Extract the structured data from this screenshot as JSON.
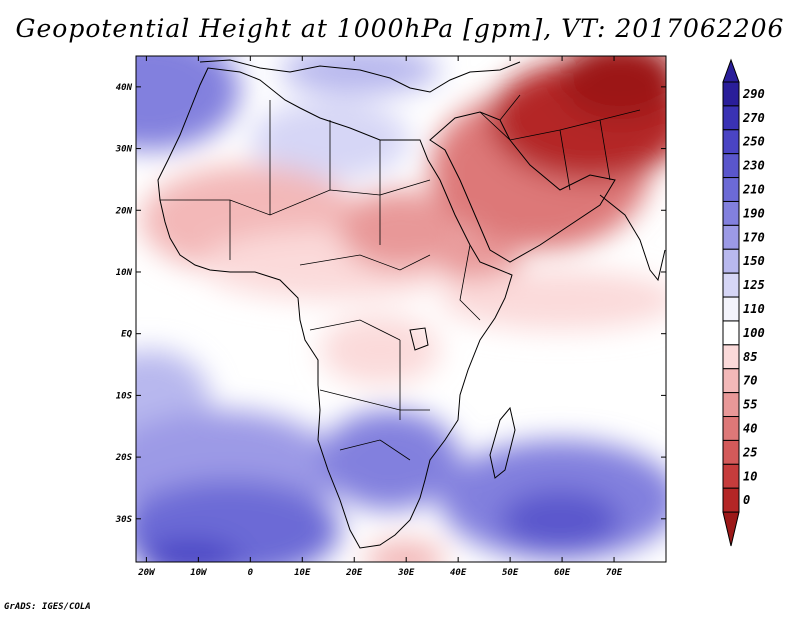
{
  "title": "Geopotential Height at 1000hPa [gpm], VT: 2017062206",
  "credit": "GrADS: IGES/COLA",
  "axes": {
    "lon_labels": [
      "20W",
      "10W",
      "0",
      "10E",
      "20E",
      "30E",
      "40E",
      "50E",
      "60E",
      "70E"
    ],
    "lat_labels": [
      "40N",
      "30N",
      "20N",
      "10N",
      "EQ",
      "10S",
      "20S",
      "30S"
    ]
  },
  "colorbar": {
    "levels": [
      "290",
      "270",
      "250",
      "230",
      "210",
      "190",
      "170",
      "150",
      "125",
      "110",
      "100",
      "85",
      "70",
      "55",
      "40",
      "25",
      "10",
      "0"
    ],
    "colors": [
      "#2a1e9a",
      "#3a32b4",
      "#4a44c4",
      "#5a56cc",
      "#6c6ad6",
      "#8280de",
      "#9c9ae6",
      "#b8b8ee",
      "#d6d6f6",
      "#f4f4fc",
      "#ffffff",
      "#fbdada",
      "#f3b8b8",
      "#e89898",
      "#dd7878",
      "#d35a5a",
      "#c63c3c",
      "#b42626",
      "#9c1818"
    ]
  },
  "field_colors": {
    "deep_blue": "#4a44c4",
    "blue": "#6c6ad6",
    "mid_blue": "#9c9ae6",
    "light_blue": "#d6d6f6",
    "white": "#ffffff",
    "light_red": "#f3b8b8",
    "red": "#dd7878",
    "deep_red": "#b42626"
  }
}
